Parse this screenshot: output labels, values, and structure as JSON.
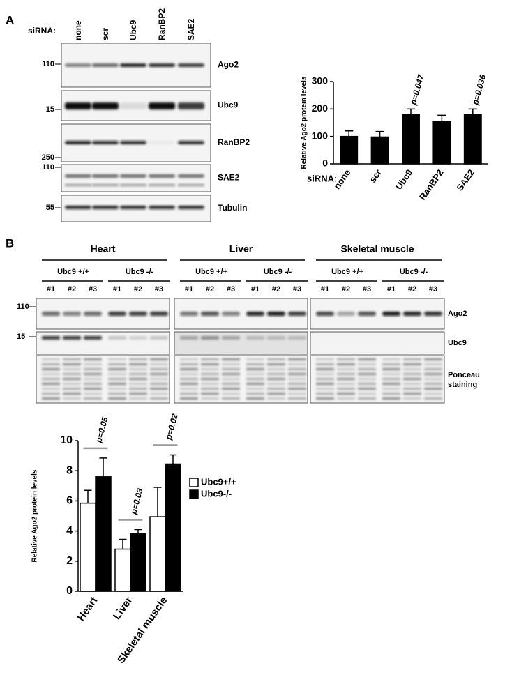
{
  "figure": {
    "panels": [
      "A",
      "B"
    ],
    "panel_a": {
      "siRNA_label": "siRNA:",
      "lanes": [
        "none",
        "scr",
        "Ubc9",
        "RanBP2",
        "SAE2"
      ],
      "blots": [
        {
          "name": "Ago2",
          "markers": [
            "110"
          ]
        },
        {
          "name": "Ubc9",
          "markers": [
            "15"
          ]
        },
        {
          "name": "RanBP2",
          "markers": [
            "250"
          ]
        },
        {
          "name": "SAE2",
          "markers": [
            "110"
          ]
        },
        {
          "name": "Tubulin",
          "markers": [
            "55"
          ]
        }
      ]
    },
    "panel_b": {
      "tissues": [
        "Heart",
        "Liver",
        "Skeletal muscle"
      ],
      "genotypes": [
        "Ubc9 +/+",
        "Ubc9 -/-"
      ],
      "lanes": [
        "#1",
        "#2",
        "#3"
      ],
      "blots": [
        {
          "name": "Ago2",
          "markers": [
            "110"
          ]
        },
        {
          "name": "Ubc9",
          "markers": [
            "15"
          ]
        },
        {
          "name": "Ponceau staining",
          "markers": []
        }
      ]
    }
  },
  "chart_data": [
    {
      "type": "bar",
      "y_label": "Relative Ago2 protein levels",
      "x_label": "siRNA:",
      "categories": [
        "none",
        "scr",
        "Ubc9",
        "RanBP2",
        "SAE2"
      ],
      "series": [
        {
          "name": null,
          "color": "#000000",
          "values": [
            100,
            98,
            180,
            155,
            180
          ],
          "errors": [
            20,
            20,
            20,
            22,
            20
          ]
        }
      ],
      "pvalues": [
        null,
        null,
        "p=0.047",
        null,
        "p=0.036"
      ],
      "ylim": [
        0,
        300
      ],
      "yticks": [
        0,
        100,
        200,
        300
      ]
    },
    {
      "type": "bar",
      "y_label": "Relative Ago2 protein levels",
      "categories": [
        "Heart",
        "Liver",
        "Skeletal muscle"
      ],
      "series": [
        {
          "name": "Ubc9+/+",
          "color": "#ffffff",
          "values": [
            5.85,
            2.8,
            4.95
          ],
          "errors": [
            0.85,
            0.65,
            1.95
          ]
        },
        {
          "name": "Ubc9-/-",
          "color": "#000000",
          "values": [
            7.6,
            3.85,
            8.45
          ],
          "errors": [
            1.25,
            0.25,
            0.6
          ]
        }
      ],
      "pvalues": [
        "p=0.05",
        "p=0.03",
        "p=0.02"
      ],
      "ylim": [
        0,
        10
      ],
      "yticks": [
        0,
        2,
        4,
        6,
        8,
        10
      ],
      "legend": "right"
    }
  ]
}
